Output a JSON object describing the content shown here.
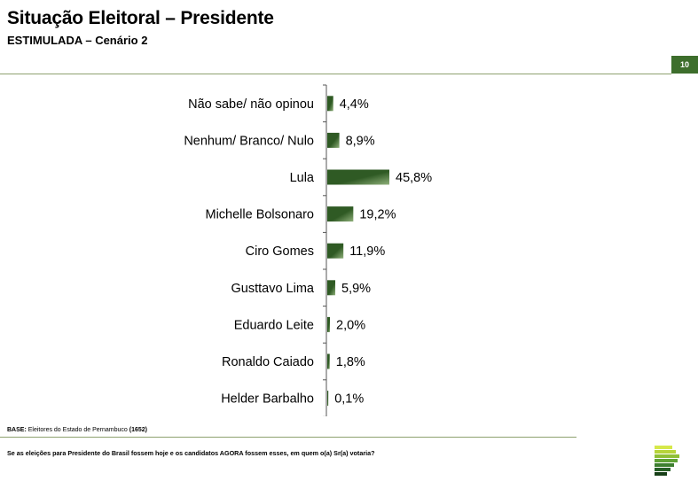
{
  "header": {
    "title": "Situação Eleitoral – Presidente",
    "subtitle": "ESTIMULADA – Cenário 2",
    "page_number": "10"
  },
  "footer": {
    "base_label": "BASE:",
    "base_text": "Eleitores do Estado de Pernambuco",
    "base_count": "(1652)",
    "question": "Se as eleições para Presidente do Brasil fossem hoje e os candidatos AGORA fossem esses, em quem o(a) Sr(a) votaria?"
  },
  "colors": {
    "bar_dark": "#2f5a24",
    "bar_light": "#8fb07a",
    "rule": "#8ea16f",
    "badge": "#3d6e2c"
  },
  "chart_data": {
    "type": "bar",
    "orientation": "horizontal",
    "categories": [
      "Não sabe/ não opinou",
      "Nenhum/ Branco/ Nulo",
      "Lula",
      "Michelle Bolsonaro",
      "Ciro Gomes",
      "Gusttavo Lima",
      "Eduardo Leite",
      "Ronaldo Caiado",
      "Helder Barbalho"
    ],
    "values": [
      4.4,
      8.9,
      45.8,
      19.2,
      11.9,
      5.9,
      2.0,
      1.8,
      0.1
    ],
    "value_labels": [
      "4,4%",
      "8,9%",
      "45,8%",
      "19,2%",
      "11,9%",
      "5,9%",
      "2,0%",
      "1,8%",
      "0,1%"
    ],
    "xlim": [
      0,
      45.8
    ],
    "grid": false,
    "legend": "none"
  }
}
